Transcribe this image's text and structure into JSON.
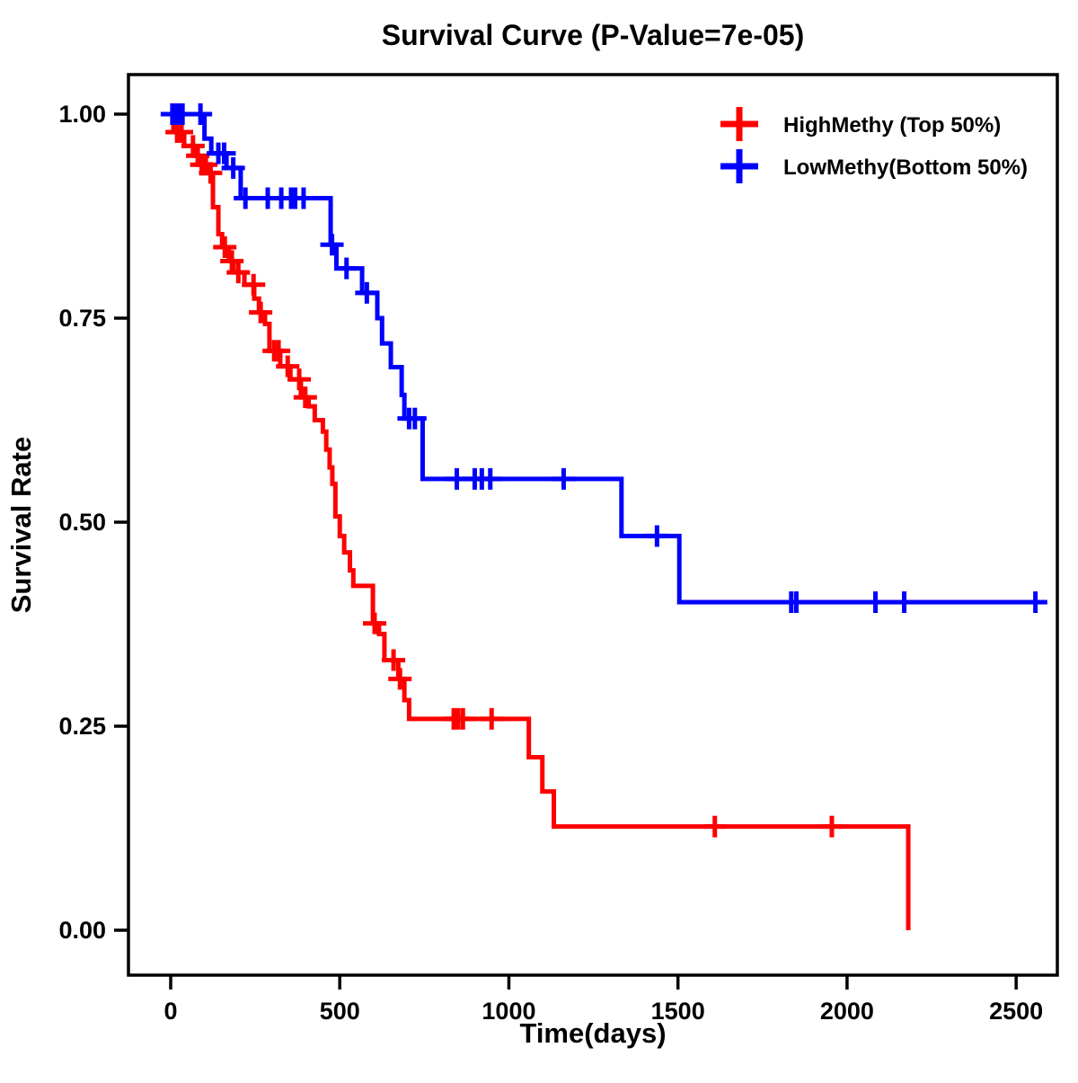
{
  "chart_data": {
    "type": "line",
    "subtype": "kaplan-meier-survival-step",
    "title": "Survival Curve (P-Value=7e-05)",
    "xlabel": "Time(days)",
    "ylabel": "Survival Rate",
    "x_ticks": [
      0,
      500,
      1000,
      1500,
      2000,
      2500
    ],
    "y_ticks": [
      {
        "value": 1.0,
        "label": "1.00"
      },
      {
        "value": 0.75,
        "label": "0.75"
      },
      {
        "value": 0.5,
        "label": "0.50"
      },
      {
        "value": 0.25,
        "label": "0.25"
      },
      {
        "value": 0.0,
        "label": "0.00"
      }
    ],
    "xlim": [
      -125,
      2623
    ],
    "ylim": [
      -0.055,
      1.048
    ],
    "grid": false,
    "legend_position": "top-right",
    "background": "#ffffff",
    "border_color": "#000000",
    "series": [
      {
        "name": "HighMethy (Top 50%)",
        "color": "#FF0000",
        "end": 2181,
        "steps": [
          [
            0,
            1.0
          ],
          [
            8,
            0.978
          ],
          [
            40,
            0.961
          ],
          [
            70,
            0.949
          ],
          [
            85,
            0.938
          ],
          [
            106,
            0.928
          ],
          [
            125,
            0.886
          ],
          [
            141,
            0.853
          ],
          [
            152,
            0.837
          ],
          [
            172,
            0.82
          ],
          [
            186,
            0.806
          ],
          [
            218,
            0.791
          ],
          [
            247,
            0.774
          ],
          [
            261,
            0.757
          ],
          [
            279,
            0.743
          ],
          [
            292,
            0.71
          ],
          [
            324,
            0.691
          ],
          [
            354,
            0.675
          ],
          [
            385,
            0.653
          ],
          [
            408,
            0.642
          ],
          [
            426,
            0.625
          ],
          [
            450,
            0.611
          ],
          [
            460,
            0.589
          ],
          [
            470,
            0.567
          ],
          [
            478,
            0.547
          ],
          [
            487,
            0.507
          ],
          [
            500,
            0.483
          ],
          [
            513,
            0.463
          ],
          [
            530,
            0.441
          ],
          [
            540,
            0.422
          ],
          [
            598,
            0.376
          ],
          [
            616,
            0.363
          ],
          [
            632,
            0.331
          ],
          [
            673,
            0.308
          ],
          [
            691,
            0.282
          ],
          [
            705,
            0.259
          ],
          [
            1059,
            0.212
          ],
          [
            1099,
            0.17
          ],
          [
            1133,
            0.127
          ],
          [
            2181,
            0.0
          ]
        ],
        "censors": [
          [
            19,
            0.978
          ],
          [
            32,
            0.978
          ],
          [
            66,
            0.961
          ],
          [
            80,
            0.949
          ],
          [
            92,
            0.938
          ],
          [
            104,
            0.938
          ],
          [
            118,
            0.928
          ],
          [
            160,
            0.837
          ],
          [
            181,
            0.82
          ],
          [
            200,
            0.806
          ],
          [
            245,
            0.791
          ],
          [
            266,
            0.757
          ],
          [
            306,
            0.71
          ],
          [
            319,
            0.71
          ],
          [
            346,
            0.691
          ],
          [
            380,
            0.675
          ],
          [
            398,
            0.653
          ],
          [
            603,
            0.376
          ],
          [
            659,
            0.331
          ],
          [
            678,
            0.308
          ],
          [
            837,
            0.259
          ],
          [
            850,
            0.259
          ],
          [
            864,
            0.259
          ],
          [
            949,
            0.259
          ],
          [
            1609,
            0.127
          ],
          [
            1955,
            0.127
          ]
        ]
      },
      {
        "name": "LowMethy(Bottom 50%)",
        "color": "#0000FF",
        "end": 2592,
        "steps": [
          [
            0,
            1.0
          ],
          [
            100,
            0.97
          ],
          [
            120,
            0.952
          ],
          [
            165,
            0.934
          ],
          [
            207,
            0.897
          ],
          [
            473,
            0.84
          ],
          [
            490,
            0.811
          ],
          [
            566,
            0.781
          ],
          [
            611,
            0.75
          ],
          [
            625,
            0.719
          ],
          [
            651,
            0.69
          ],
          [
            683,
            0.656
          ],
          [
            691,
            0.627
          ],
          [
            745,
            0.553
          ],
          [
            1333,
            0.483
          ],
          [
            1504,
            0.402
          ]
        ],
        "censors": [
          [
            5,
            1.0
          ],
          [
            15,
            1.0
          ],
          [
            25,
            1.0
          ],
          [
            35,
            1.0
          ],
          [
            88,
            1.0
          ],
          [
            141,
            0.952
          ],
          [
            158,
            0.952
          ],
          [
            185,
            0.934
          ],
          [
            221,
            0.897
          ],
          [
            287,
            0.897
          ],
          [
            327,
            0.897
          ],
          [
            356,
            0.897
          ],
          [
            368,
            0.897
          ],
          [
            393,
            0.897
          ],
          [
            477,
            0.84
          ],
          [
            520,
            0.811
          ],
          [
            580,
            0.781
          ],
          [
            705,
            0.627
          ],
          [
            722,
            0.627
          ],
          [
            846,
            0.553
          ],
          [
            899,
            0.553
          ],
          [
            920,
            0.553
          ],
          [
            945,
            0.553
          ],
          [
            1162,
            0.553
          ],
          [
            1438,
            0.483
          ],
          [
            1835,
            0.402
          ],
          [
            1850,
            0.402
          ],
          [
            2084,
            0.402
          ],
          [
            2169,
            0.402
          ],
          [
            2557,
            0.402
          ]
        ]
      }
    ]
  },
  "layout_note": "two-group survival plot, red above blue legend entries"
}
